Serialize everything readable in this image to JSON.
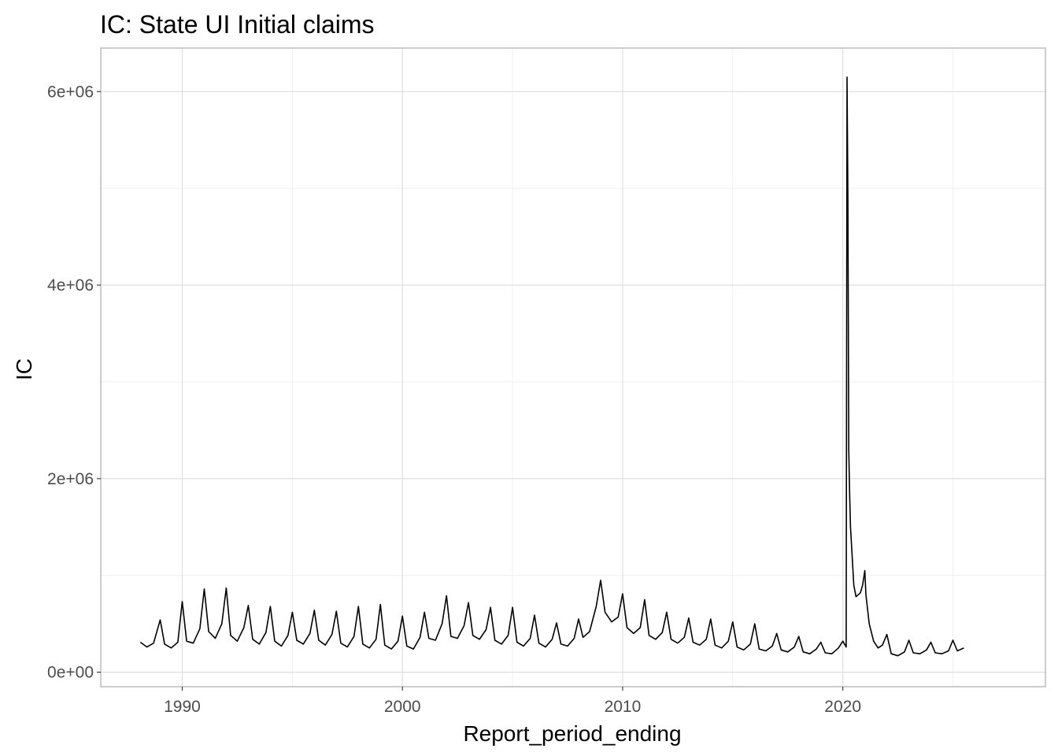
{
  "chart_data": {
    "type": "line",
    "title": "IC: State UI Initial claims",
    "xlabel": "Report_period_ending",
    "ylabel": "IC",
    "x_ticks": [
      "1990",
      "2000",
      "2010",
      "2020"
    ],
    "x_tick_values": [
      1990,
      2000,
      2010,
      2020
    ],
    "y_ticks": [
      "0e+00",
      "2e+06",
      "4e+06",
      "6e+06"
    ],
    "y_tick_values": [
      0,
      2000000,
      4000000,
      6000000
    ],
    "xlim": [
      1986.3,
      2029.2
    ],
    "ylim": [
      -150000,
      6450000
    ],
    "grid": true,
    "line_color": "#000000",
    "series": [
      {
        "x": [
          1988.1,
          1988.4,
          1988.7,
          1989.0,
          1989.2,
          1989.5,
          1989.8,
          1990.0,
          1990.2,
          1990.5,
          1990.8,
          1991.0,
          1991.2,
          1991.5,
          1991.8,
          1992.0,
          1992.2,
          1992.5,
          1992.8,
          1993.0,
          1993.2,
          1993.5,
          1993.8,
          1994.0,
          1994.2,
          1994.5,
          1994.8,
          1995.0,
          1995.2,
          1995.5,
          1995.8,
          1996.0,
          1996.2,
          1996.5,
          1996.8,
          1997.0,
          1997.2,
          1997.5,
          1997.8,
          1998.0,
          1998.2,
          1998.5,
          1998.8,
          1999.0,
          1999.2,
          1999.5,
          1999.8,
          2000.0,
          2000.2,
          2000.5,
          2000.8,
          2001.0,
          2001.2,
          2001.5,
          2001.8,
          2002.0,
          2002.2,
          2002.5,
          2002.8,
          2003.0,
          2003.2,
          2003.5,
          2003.8,
          2004.0,
          2004.2,
          2004.5,
          2004.8,
          2005.0,
          2005.2,
          2005.5,
          2005.8,
          2006.0,
          2006.2,
          2006.5,
          2006.8,
          2007.0,
          2007.2,
          2007.5,
          2007.8,
          2008.0,
          2008.2,
          2008.5,
          2008.8,
          2009.0,
          2009.2,
          2009.5,
          2009.8,
          2010.0,
          2010.2,
          2010.5,
          2010.8,
          2011.0,
          2011.2,
          2011.5,
          2011.8,
          2012.0,
          2012.2,
          2012.5,
          2012.8,
          2013.0,
          2013.2,
          2013.5,
          2013.8,
          2014.0,
          2014.2,
          2014.5,
          2014.8,
          2015.0,
          2015.2,
          2015.5,
          2015.8,
          2016.0,
          2016.2,
          2016.5,
          2016.8,
          2017.0,
          2017.2,
          2017.5,
          2017.8,
          2018.0,
          2018.2,
          2018.5,
          2018.8,
          2019.0,
          2019.2,
          2019.5,
          2019.8,
          2020.0,
          2020.15,
          2020.19,
          2020.23,
          2020.27,
          2020.31,
          2020.35,
          2020.4,
          2020.5,
          2020.6,
          2020.7,
          2020.8,
          2020.9,
          2021.0,
          2021.05,
          2021.2,
          2021.4,
          2021.6,
          2021.8,
          2022.0,
          2022.2,
          2022.5,
          2022.8,
          2023.0,
          2023.2,
          2023.5,
          2023.8,
          2024.0,
          2024.2,
          2024.5,
          2024.8,
          2025.0,
          2025.2,
          2025.5
        ],
        "y": [
          310000,
          260000,
          300000,
          540000,
          290000,
          250000,
          310000,
          730000,
          320000,
          300000,
          450000,
          860000,
          420000,
          350000,
          500000,
          870000,
          380000,
          320000,
          460000,
          690000,
          340000,
          290000,
          410000,
          680000,
          320000,
          270000,
          380000,
          620000,
          330000,
          290000,
          400000,
          640000,
          330000,
          280000,
          390000,
          630000,
          300000,
          260000,
          370000,
          680000,
          290000,
          250000,
          340000,
          700000,
          280000,
          240000,
          320000,
          580000,
          270000,
          240000,
          360000,
          620000,
          350000,
          330000,
          500000,
          790000,
          370000,
          350000,
          480000,
          720000,
          380000,
          340000,
          440000,
          670000,
          330000,
          290000,
          380000,
          670000,
          310000,
          270000,
          350000,
          590000,
          300000,
          260000,
          340000,
          510000,
          290000,
          270000,
          350000,
          550000,
          360000,
          420000,
          680000,
          950000,
          620000,
          520000,
          570000,
          810000,
          460000,
          400000,
          460000,
          750000,
          380000,
          340000,
          410000,
          620000,
          340000,
          300000,
          360000,
          560000,
          310000,
          280000,
          340000,
          550000,
          280000,
          250000,
          320000,
          520000,
          260000,
          230000,
          290000,
          500000,
          240000,
          220000,
          270000,
          400000,
          230000,
          210000,
          260000,
          370000,
          210000,
          190000,
          240000,
          310000,
          200000,
          190000,
          250000,
          320000,
          260000,
          6150000,
          4900000,
          2300000,
          1850000,
          1500000,
          1300000,
          900000,
          780000,
          800000,
          820000,
          900000,
          1050000,
          800000,
          500000,
          320000,
          250000,
          280000,
          390000,
          190000,
          170000,
          210000,
          330000,
          200000,
          190000,
          230000,
          310000,
          200000,
          190000,
          220000,
          330000,
          220000,
          250000
        ]
      }
    ]
  }
}
